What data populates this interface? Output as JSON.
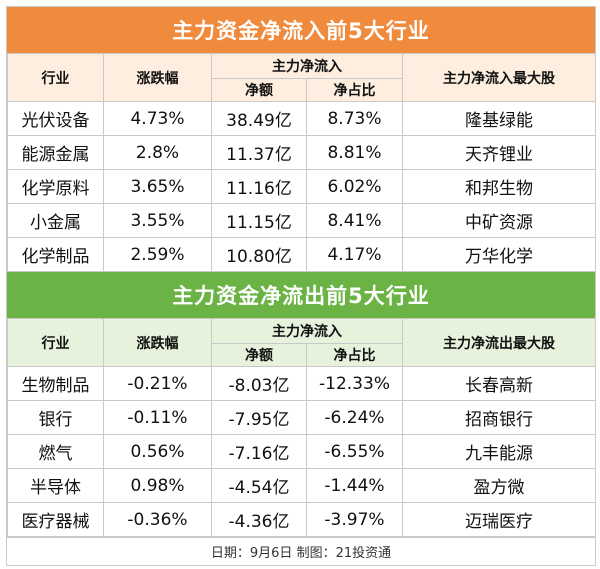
{
  "inflow": {
    "title": "主力资金净流入前5大行业",
    "headers": {
      "industry": "行业",
      "change": "涨跌幅",
      "main_flow": "主力净流入",
      "net_amount": "净额",
      "net_ratio": "净占比",
      "top_stock": "主力净流入最大股"
    },
    "rows": [
      {
        "industry": "光伏设备",
        "change": "4.73%",
        "net_amount": "38.49亿",
        "net_ratio": "8.73%",
        "top_stock": "隆基绿能"
      },
      {
        "industry": "能源金属",
        "change": "2.8%",
        "net_amount": "11.37亿",
        "net_ratio": "8.81%",
        "top_stock": "天齐锂业"
      },
      {
        "industry": "化学原料",
        "change": "3.65%",
        "net_amount": "11.16亿",
        "net_ratio": "6.02%",
        "top_stock": "和邦生物"
      },
      {
        "industry": "小金属",
        "change": "3.55%",
        "net_amount": "11.15亿",
        "net_ratio": "8.41%",
        "top_stock": "中矿资源"
      },
      {
        "industry": "化学制品",
        "change": "2.59%",
        "net_amount": "10.80亿",
        "net_ratio": "4.17%",
        "top_stock": "万华化学"
      }
    ]
  },
  "outflow": {
    "title": "主力资金净流出前5大行业",
    "headers": {
      "industry": "行业",
      "change": "涨跌幅",
      "main_flow": "主力净流入",
      "net_amount": "净额",
      "net_ratio": "净占比",
      "top_stock": "主力净流出最大股"
    },
    "rows": [
      {
        "industry": "生物制品",
        "change": "-0.21%",
        "net_amount": "-8.03亿",
        "net_ratio": "-12.33%",
        "top_stock": "长春高新"
      },
      {
        "industry": "银行",
        "change": "-0.11%",
        "net_amount": "-7.95亿",
        "net_ratio": "-6.24%",
        "top_stock": "招商银行"
      },
      {
        "industry": "燃气",
        "change": "0.56%",
        "net_amount": "-7.16亿",
        "net_ratio": "-6.55%",
        "top_stock": "九丰能源"
      },
      {
        "industry": "半导体",
        "change": "0.98%",
        "net_amount": "-4.54亿",
        "net_ratio": "-1.44%",
        "top_stock": "盈方微"
      },
      {
        "industry": "医疗器械",
        "change": "-0.36%",
        "net_amount": "-4.36亿",
        "net_ratio": "-3.97%",
        "top_stock": "迈瑞医疗"
      }
    ]
  },
  "footer": "日期：9月6日 制图：21投资通",
  "colors": {
    "inflow_title_bg": "#f08a3c",
    "outflow_title_bg": "#6ab344",
    "inflow_header_bg": "#fdeee0",
    "outflow_header_bg": "#e6f2dc"
  }
}
